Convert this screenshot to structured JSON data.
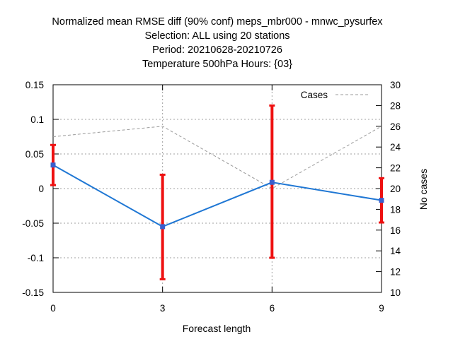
{
  "title_lines": [
    "Normalized mean RMSE diff (90% conf) meps_mbr000 - mnwc_pysurfex",
    "Selection: ALL using    20 stations",
    "Period: 20210628-20210726",
    "Temperature 500hPa   Hours: {03}"
  ],
  "chart_data": {
    "type": "line",
    "title": "Normalized mean RMSE diff (90% conf) meps_mbr000 - mnwc_pysurfex",
    "xlabel": "Forecast length",
    "ylabel": "",
    "y2label": "No cases",
    "x": [
      0,
      3,
      6,
      9
    ],
    "xlim": [
      0,
      9
    ],
    "ylim": [
      -0.15,
      0.15
    ],
    "y2lim": [
      10,
      30
    ],
    "x_ticks": [
      "0",
      "3",
      "6",
      "9"
    ],
    "y_ticks": [
      "0.15",
      "0.1",
      "0.05",
      "0",
      "-0.05",
      "-0.1",
      "-0.15"
    ],
    "y_tick_values": [
      0.15,
      0.1,
      0.05,
      0,
      -0.05,
      -0.1,
      -0.15
    ],
    "y2_ticks": [
      "30",
      "28",
      "26",
      "24",
      "22",
      "20",
      "18",
      "16",
      "14",
      "12",
      "10"
    ],
    "y2_tick_values": [
      30,
      28,
      26,
      24,
      22,
      20,
      18,
      16,
      14,
      12,
      10
    ],
    "grid": true,
    "legend_position": "top-right",
    "series": [
      {
        "values": [
          0.034,
          -0.055,
          0.009,
          -0.017
        ],
        "color": "#1f77d4",
        "marker_color": "#3a5fcd",
        "axis": "left"
      },
      {
        "name": "Cases",
        "values": [
          25,
          26,
          20,
          26
        ],
        "color": "#999999",
        "axis": "right",
        "dashed": true
      }
    ],
    "error_bars": {
      "color": "#ee1111",
      "lower": [
        0.005,
        -0.131,
        -0.1,
        -0.049
      ],
      "upper": [
        0.063,
        0.02,
        0.12,
        0.015
      ]
    }
  }
}
